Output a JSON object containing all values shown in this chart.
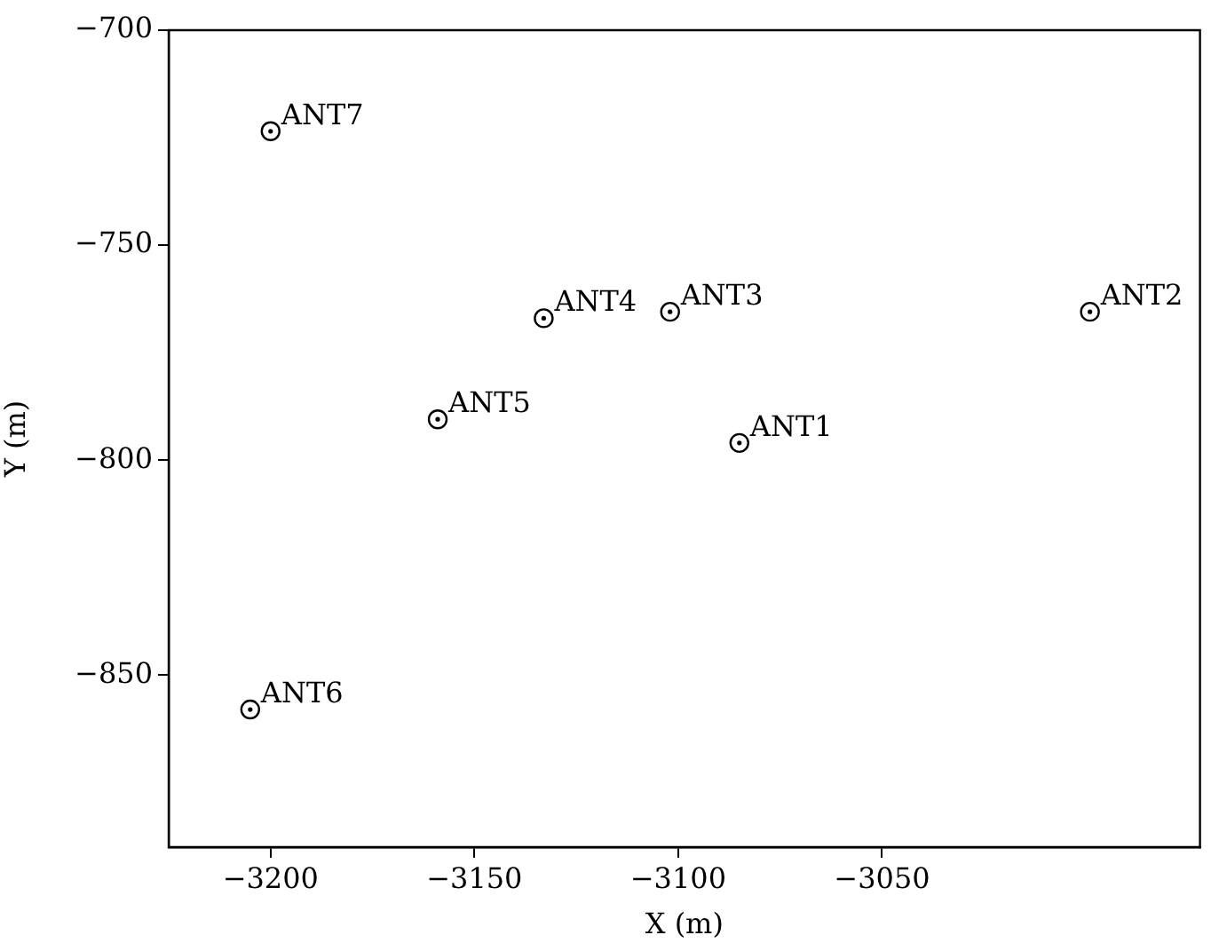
{
  "chart_data": {
    "type": "scatter",
    "xlabel": "X (m)",
    "ylabel": "Y (m)",
    "x": [
      -3085,
      -2999,
      -3102,
      -3133,
      -3159,
      -3205,
      -3200
    ],
    "series": [
      {
        "color": "#000000",
        "values": [
          -796,
          -765.5,
          -765.5,
          -767,
          -790.5,
          -858,
          -723.5
        ]
      }
    ],
    "marker": "circle",
    "grid": false,
    "legend": false,
    "xlim": [
      -3225,
      -2972
    ],
    "ylim": [
      -890,
      -700
    ],
    "xticks": [
      {
        "value": -3200,
        "label": "−3200"
      },
      {
        "value": -3150,
        "label": "−3150"
      },
      {
        "value": -3100,
        "label": "−3100"
      },
      {
        "value": -3050,
        "label": "−3050"
      }
    ],
    "yticks": [
      {
        "value": -700,
        "label": "−700"
      },
      {
        "value": -750,
        "label": "−750"
      },
      {
        "value": -800,
        "label": "−800"
      },
      {
        "value": -850,
        "label": "−850"
      }
    ],
    "annotations": [
      {
        "text": "ANT1",
        "x": -3085,
        "y": -796
      },
      {
        "text": "ANT2",
        "x": -2999,
        "y": -765.5
      },
      {
        "text": "ANT3",
        "x": -3102,
        "y": -765.5
      },
      {
        "text": "ANT4",
        "x": -3133,
        "y": -767
      },
      {
        "text": "ANT5",
        "x": -3159,
        "y": -790.5
      },
      {
        "text": "ANT6",
        "x": -3205,
        "y": -858
      },
      {
        "text": "ANT7",
        "x": -3200,
        "y": -723.5
      }
    ]
  }
}
